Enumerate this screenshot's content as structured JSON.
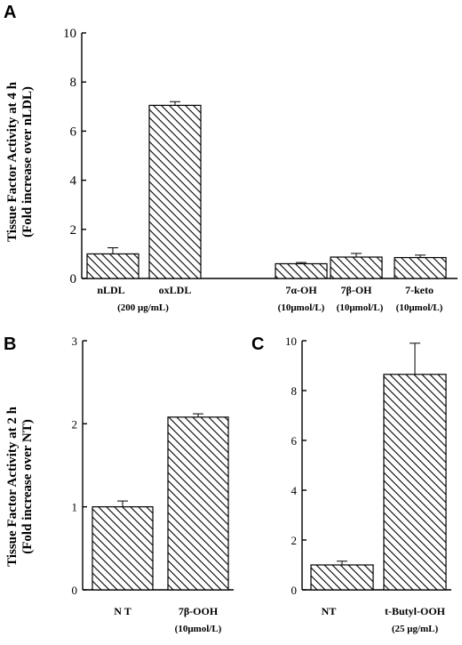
{
  "chart_data": [
    {
      "panel": "A",
      "type": "bar",
      "ylabel_line1": "Tissue Factor Activity at 4 h",
      "ylabel_line2": "(Fold increase over nLDL)",
      "ylim": [
        0,
        10
      ],
      "yticks": [
        "0",
        "2",
        "4",
        "6",
        "8",
        "10"
      ],
      "categories": [
        "nLDL",
        "oxLDL",
        "7α-OH",
        "7β-OH",
        "7-keto"
      ],
      "subtitles": [
        "(200 μg/mL)",
        "(10μmol/L)",
        "(10μmol/L)",
        "(10μmol/L)"
      ],
      "values": [
        1.0,
        7.05,
        0.6,
        0.87,
        0.85
      ],
      "errors": [
        0.25,
        0.15,
        0.05,
        0.15,
        0.1
      ]
    },
    {
      "panel": "B",
      "type": "bar",
      "ylabel_line1": "Tissue Factor Activity at 2 h",
      "ylabel_line2": "(Fold increase over NT)",
      "ylim": [
        0,
        3
      ],
      "yticks": [
        "0",
        "1",
        "2",
        "3"
      ],
      "categories": [
        "N T",
        "7β-OOH"
      ],
      "subtitles": [
        "(10μmol/L)"
      ],
      "values": [
        1.0,
        2.08
      ],
      "errors": [
        0.07,
        0.04
      ]
    },
    {
      "panel": "C",
      "type": "bar",
      "ylim": [
        0,
        10
      ],
      "yticks": [
        "0",
        "2",
        "4",
        "6",
        "8",
        "10"
      ],
      "categories": [
        "NT",
        "t-Butyl-OOH"
      ],
      "subtitles": [
        "(25 μg/mL)"
      ],
      "values": [
        1.0,
        8.65
      ],
      "errors": [
        0.15,
        1.25
      ]
    }
  ]
}
